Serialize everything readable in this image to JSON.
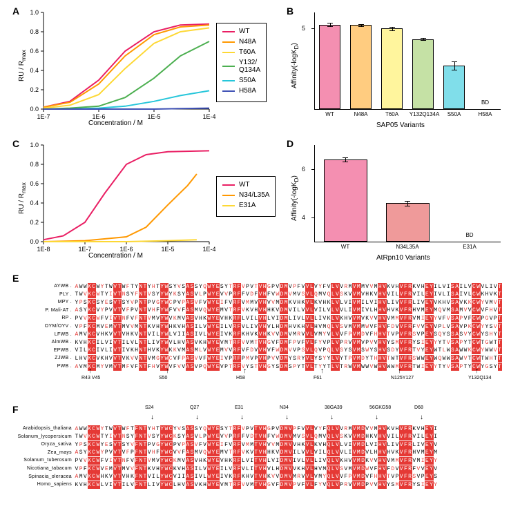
{
  "panelA": {
    "label": "A",
    "type": "line",
    "xlabel": "Concentration / M",
    "ylabel": "RU / R",
    "ylabel_sub": "max",
    "xlim": [
      1e-07,
      0.0001
    ],
    "xlog": true,
    "ylim": [
      0,
      1.0
    ],
    "ytick_step": 0.2,
    "xticks": [
      "1E-7",
      "1E-6",
      "1E-5",
      "1E-4"
    ],
    "series": [
      {
        "name": "WT",
        "color": "#e91e63",
        "pts": [
          [
            1e-07,
            0.02
          ],
          [
            3e-07,
            0.08
          ],
          [
            1e-06,
            0.3
          ],
          [
            3e-06,
            0.6
          ],
          [
            1e-05,
            0.8
          ],
          [
            3e-05,
            0.87
          ],
          [
            0.0001,
            0.88
          ]
        ]
      },
      {
        "name": "N48A",
        "color": "#ff9800",
        "pts": [
          [
            1e-07,
            0.02
          ],
          [
            3e-07,
            0.07
          ],
          [
            1e-06,
            0.26
          ],
          [
            3e-06,
            0.55
          ],
          [
            1e-05,
            0.77
          ],
          [
            3e-05,
            0.85
          ],
          [
            0.0001,
            0.87
          ]
        ]
      },
      {
        "name": "T60A",
        "color": "#fdd835",
        "pts": [
          [
            1e-07,
            0.01
          ],
          [
            3e-07,
            0.04
          ],
          [
            1e-06,
            0.15
          ],
          [
            3e-06,
            0.42
          ],
          [
            1e-05,
            0.68
          ],
          [
            3e-05,
            0.8
          ],
          [
            0.0001,
            0.84
          ]
        ]
      },
      {
        "name": "Y132/\nQ134A",
        "color": "#4caf50",
        "pts": [
          [
            1e-07,
            0.0
          ],
          [
            3e-07,
            0.01
          ],
          [
            1e-06,
            0.03
          ],
          [
            3e-06,
            0.12
          ],
          [
            1e-05,
            0.32
          ],
          [
            3e-05,
            0.55
          ],
          [
            0.0001,
            0.7
          ]
        ]
      },
      {
        "name": "S50A",
        "color": "#26c6da",
        "pts": [
          [
            1e-07,
            0.0
          ],
          [
            3e-07,
            0.0
          ],
          [
            1e-06,
            0.01
          ],
          [
            3e-06,
            0.03
          ],
          [
            1e-05,
            0.08
          ],
          [
            3e-05,
            0.14
          ],
          [
            0.0001,
            0.19
          ]
        ]
      },
      {
        "name": "H58A",
        "color": "#3f51b5",
        "pts": [
          [
            1e-07,
            0.0
          ],
          [
            3e-07,
            0.0
          ],
          [
            1e-06,
            0.0
          ],
          [
            3e-06,
            0.0
          ],
          [
            1e-05,
            0.0
          ],
          [
            3e-05,
            0.005
          ],
          [
            0.0001,
            0.01
          ]
        ]
      }
    ]
  },
  "panelB": {
    "label": "B",
    "type": "bar",
    "xlabel": "SAP05 Variants",
    "ylabel": "Affinity(-logK",
    "ylabel_sub": "D",
    "ylabel_suffix": ")",
    "ylim": [
      0,
      6
    ],
    "yticks": [
      5
    ],
    "categories": [
      "WT",
      "N48A",
      "T60A",
      "Y132Q134A",
      "S50A",
      "H58A"
    ],
    "values": [
      5.25,
      5.22,
      5.0,
      4.35,
      2.7,
      0
    ],
    "errors": [
      0.12,
      0.06,
      0.1,
      0.05,
      0.25,
      0
    ],
    "colors": [
      "#f48fb1",
      "#ffcc80",
      "#fff59d",
      "#c5e1a5",
      "#80deea",
      "#ffffff"
    ],
    "bd_label": "BD"
  },
  "panelC": {
    "label": "C",
    "type": "line",
    "xlabel": "Concentration / M",
    "ylabel": "RU / R",
    "ylabel_sub": "max",
    "xlim": [
      1e-08,
      0.0001
    ],
    "xlog": true,
    "ylim": [
      0,
      1.0
    ],
    "ytick_step": 0.2,
    "xticks": [
      "1E-8",
      "1E-7",
      "1E-6",
      "1E-5",
      "1E-4"
    ],
    "series": [
      {
        "name": "WT",
        "color": "#e91e63",
        "pts": [
          [
            1e-08,
            0.02
          ],
          [
            3e-08,
            0.06
          ],
          [
            1e-07,
            0.2
          ],
          [
            3e-07,
            0.5
          ],
          [
            1e-06,
            0.8
          ],
          [
            3e-06,
            0.9
          ],
          [
            1e-05,
            0.93
          ],
          [
            0.0001,
            0.94
          ]
        ]
      },
      {
        "name": "N34/L35A",
        "color": "#ff9800",
        "pts": [
          [
            1e-08,
            0.0
          ],
          [
            1e-07,
            0.01
          ],
          [
            1e-06,
            0.05
          ],
          [
            3e-06,
            0.15
          ],
          [
            1e-05,
            0.38
          ],
          [
            3e-05,
            0.58
          ],
          [
            5e-05,
            0.7
          ]
        ]
      },
      {
        "name": "E31A",
        "color": "#fdd835",
        "pts": [
          [
            1e-08,
            0.0
          ],
          [
            1e-07,
            0.0
          ],
          [
            1e-06,
            0.0
          ],
          [
            1e-05,
            0.01
          ],
          [
            5e-05,
            0.02
          ]
        ]
      }
    ]
  },
  "panelD": {
    "label": "D",
    "type": "bar",
    "xlabel": "AtRpn10 Variants",
    "ylabel": "Affinity(-logK",
    "ylabel_sub": "D",
    "ylabel_suffix": ")",
    "ylim": [
      3,
      7
    ],
    "yticks": [
      4,
      6
    ],
    "categories": [
      "WT",
      "N34L35A",
      "E31A"
    ],
    "values": [
      6.4,
      4.6,
      0
    ],
    "errors": [
      0.08,
      0.1,
      0
    ],
    "colors": [
      "#f48fb1",
      "#ef9a9a",
      "#ffffff"
    ],
    "bd_label": "BD"
  },
  "panelE": {
    "label": "E",
    "species": [
      "AYWB .",
      "PLY .",
      "MPY .",
      "P. Mali-AT .",
      "RP .",
      "OYM/OYV .",
      "LFWB .",
      "AlmWB .",
      "EPWB .",
      "ZJWB .",
      "PWB ."
    ],
    "arrows_bottom": [
      "R43 V45",
      "S50",
      "H58",
      "F61",
      "N125Y127",
      "Y132Q134"
    ],
    "seq_len": 100
  },
  "panelF": {
    "label": "F",
    "species": [
      "Arabidopsis_thaliana",
      "Solanum_lycopersicum",
      "Oryza_sativa",
      "Zea_mays",
      "Solanum_tuberosum",
      "Nicotiana_tabacum",
      "Spinacia_oleracea",
      "Homo_sapiens"
    ],
    "arrows_top": [
      "S24",
      "Q27",
      "E31",
      "N34",
      "38GA39",
      "56GKG58",
      "D68"
    ],
    "seq_len": 85
  }
}
